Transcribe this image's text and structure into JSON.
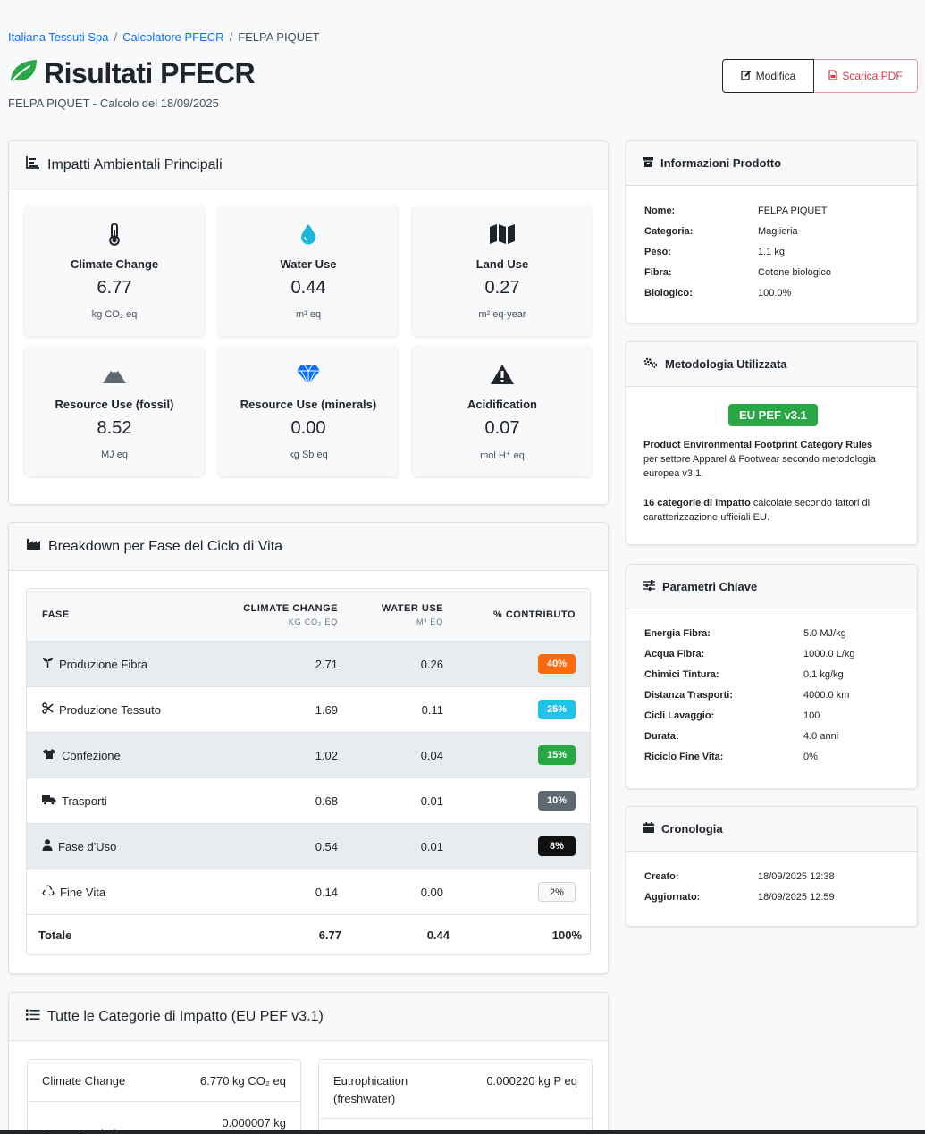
{
  "breadcrumb": {
    "company": "Italiana Tessuti Spa",
    "calculator": "Calcolatore PFECR",
    "current": "FELPA PIQUET"
  },
  "header": {
    "title": "Risultati PFECR",
    "subtitle": "FELPA PIQUET - Calcolo del 18/09/2025",
    "edit_label": "Modifica",
    "pdf_label": "Scarica PDF"
  },
  "impacts": {
    "title": "Impatti Ambientali Principali",
    "tiles": [
      {
        "name": "Climate Change",
        "value": "6.77",
        "unit": "kg CO₂ eq",
        "icon": "thermometer-icon"
      },
      {
        "name": "Water Use",
        "value": "0.44",
        "unit": "m³ eq",
        "icon": "water-drop-icon"
      },
      {
        "name": "Land Use",
        "value": "0.27",
        "unit": "m² eq-year",
        "icon": "map-icon"
      },
      {
        "name": "Resource Use (fossil)",
        "value": "8.52",
        "unit": "MJ eq",
        "icon": "mountain-icon"
      },
      {
        "name": "Resource Use (minerals)",
        "value": "0.00",
        "unit": "kg Sb eq",
        "icon": "gem-icon"
      },
      {
        "name": "Acidification",
        "value": "0.07",
        "unit": "mol H⁺ eq",
        "icon": "warning-icon"
      }
    ]
  },
  "breakdown": {
    "title": "Breakdown per Fase del Ciclo di Vita",
    "columns": {
      "phase": "FASE",
      "climate": "CLIMATE CHANGE",
      "climate_unit": "KG CO₂ EQ",
      "water": "WATER USE",
      "water_unit": "M³ EQ",
      "share": "% CONTRIBUTO"
    },
    "rows": [
      {
        "phase": "Produzione Fibra",
        "climate": "2.71",
        "water": "0.26",
        "share": "40%",
        "icon": "seedling-icon",
        "color": "#fd6a0d",
        "text_color": "#ffffff"
      },
      {
        "phase": "Produzione Tessuto",
        "climate": "1.69",
        "water": "0.11",
        "share": "25%",
        "icon": "scissors-icon",
        "color": "#1cc4e8",
        "text_color": "#ffffff"
      },
      {
        "phase": "Confezione",
        "climate": "1.02",
        "water": "0.04",
        "share": "15%",
        "icon": "tshirt-icon",
        "color": "#28a745",
        "text_color": "#ffffff"
      },
      {
        "phase": "Trasporti",
        "climate": "0.68",
        "water": "0.01",
        "share": "10%",
        "icon": "truck-icon",
        "color": "#5f6770",
        "text_color": "#ffffff"
      },
      {
        "phase": "Fase d'Uso",
        "climate": "0.54",
        "water": "0.01",
        "share": "8%",
        "icon": "user-icon",
        "color": "#111111",
        "text_color": "#ffffff"
      },
      {
        "phase": "Fine Vita",
        "climate": "0.14",
        "water": "0.00",
        "share": "2%",
        "icon": "recycle-icon",
        "color": "#f8f9fa",
        "text_color": "#212529"
      }
    ],
    "total": {
      "label": "Totale",
      "climate": "6.77",
      "water": "0.44",
      "share": "100%"
    }
  },
  "categories": {
    "title": "Tutte le Categorie di Impatto (EU PEF v3.1)",
    "left": [
      {
        "name": "Climate Change",
        "value": "6.770 kg CO₂ eq"
      },
      {
        "name": "Ozone Depletion",
        "value": "0.000007 kg"
      }
    ],
    "right": [
      {
        "name": "Eutrophication (freshwater)",
        "value": "0.000220 kg P eq"
      }
    ]
  },
  "product": {
    "title": "Informazioni Prodotto",
    "rows": [
      {
        "k": "Nome:",
        "v": "FELPA PIQUET"
      },
      {
        "k": "Categoria:",
        "v": "Maglieria"
      },
      {
        "k": "Peso:",
        "v": "1.1 kg"
      },
      {
        "k": "Fibra:",
        "v": "Cotone biologico"
      },
      {
        "k": "Biologico:",
        "v": "100.0%"
      }
    ]
  },
  "methodology": {
    "title": "Metodologia Utilizzata",
    "badge": "EU PEF v3.1",
    "p1_bold": "Product Environmental Footprint Category Rules",
    "p1_rest": "per settore Apparel & Footwear secondo metodologia europea v3.1.",
    "p2_bold": "16 categorie di impatto",
    "p2_rest": "calcolate secondo fattori di caratterizzazione ufficiali EU."
  },
  "params": {
    "title": "Parametri Chiave",
    "rows": [
      {
        "k": "Energia Fibra:",
        "v": "5.0 MJ/kg"
      },
      {
        "k": "Acqua Fibra:",
        "v": "1000.0 L/kg"
      },
      {
        "k": "Chimici Tintura:",
        "v": "0.1 kg/kg"
      },
      {
        "k": "Distanza Trasporti:",
        "v": "4000.0 km"
      },
      {
        "k": "Cicli Lavaggio:",
        "v": "100"
      },
      {
        "k": "Durata:",
        "v": "4.0 anni"
      },
      {
        "k": "Riciclo Fine Vita:",
        "v": "0%"
      }
    ]
  },
  "history": {
    "title": "Cronologia",
    "rows": [
      {
        "k": "Creato:",
        "v": "18/09/2025 12:38"
      },
      {
        "k": "Aggiornato:",
        "v": "18/09/2025 12:59"
      }
    ]
  },
  "colors": {
    "primary_link": "#0d6efd",
    "danger": "#dc3545",
    "success": "#28a745",
    "leaf": "#28a745"
  }
}
